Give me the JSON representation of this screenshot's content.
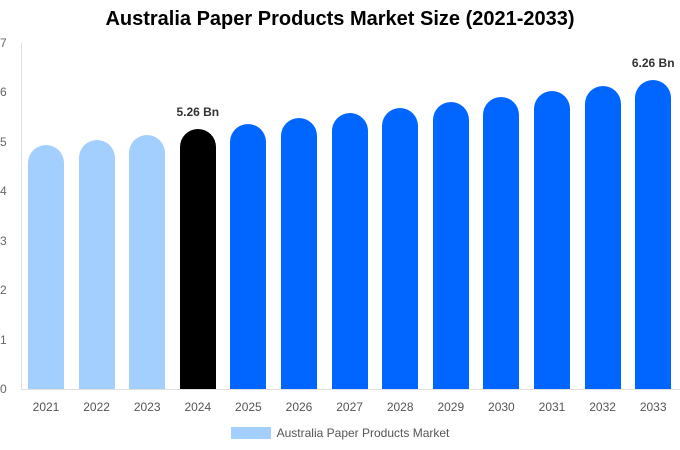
{
  "title": "Australia Paper Products Market Size (2021-2033)",
  "legend": {
    "label": "Australia Paper Products Market",
    "color": "#a3cfff"
  },
  "colors": {
    "historical": "#a3cfff",
    "base": "#000000",
    "forecast": "#0066ff"
  },
  "y_ticks": [
    "0",
    "1",
    "2",
    "3",
    "4",
    "5",
    "6",
    "7"
  ],
  "annotations": [
    {
      "year": "2024",
      "text": "5.26 Bn"
    },
    {
      "year": "2033",
      "text": "6.26 Bn"
    }
  ],
  "chart_data": {
    "type": "bar",
    "title": "Australia Paper Products Market Size (2021-2033)",
    "xlabel": "",
    "ylabel": "",
    "ylim": [
      0,
      7
    ],
    "grid": false,
    "legend_position": "bottom",
    "categories": [
      "2021",
      "2022",
      "2023",
      "2024",
      "2025",
      "2026",
      "2027",
      "2028",
      "2029",
      "2030",
      "2031",
      "2032",
      "2033"
    ],
    "series": [
      {
        "name": "Australia Paper Products Market",
        "values": [
          4.93,
          5.03,
          5.14,
          5.26,
          5.36,
          5.48,
          5.58,
          5.68,
          5.81,
          5.91,
          6.03,
          6.13,
          6.26
        ],
        "colors": [
          "#a3cfff",
          "#a3cfff",
          "#a3cfff",
          "#000000",
          "#0066ff",
          "#0066ff",
          "#0066ff",
          "#0066ff",
          "#0066ff",
          "#0066ff",
          "#0066ff",
          "#0066ff",
          "#0066ff"
        ]
      }
    ],
    "annotations": [
      {
        "x": "2024",
        "text": "5.26 Bn"
      },
      {
        "x": "2033",
        "text": "6.26 Bn"
      }
    ]
  }
}
